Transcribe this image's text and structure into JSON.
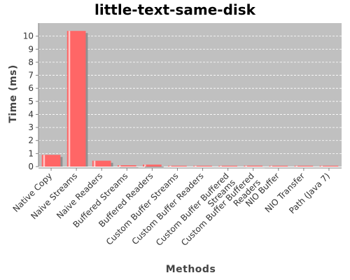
{
  "colors": {
    "plot_background": "#c0c0c0",
    "gridline": "#ffffff",
    "bar_fill": "#ff6666",
    "bar_highlight": "#ffd6d6",
    "bar_shadow": "#909090"
  },
  "chart_data": {
    "type": "bar",
    "title": "little-text-same-disk",
    "xlabel": "Methods",
    "ylabel": "Time (ms)",
    "ylim": [
      0,
      11
    ],
    "yticks": [
      0,
      1,
      2,
      3,
      4,
      5,
      6,
      7,
      8,
      9,
      10
    ],
    "grid": true,
    "categories": [
      [
        "Native Copy"
      ],
      [
        "Naive Streams"
      ],
      [
        "Naive Readers"
      ],
      [
        "Buffered Streams"
      ],
      [
        "Buffered Readers"
      ],
      [
        "Custom Buffer Streams"
      ],
      [
        "Custom Buffer Readers"
      ],
      [
        "Custom Buffer Buffered",
        "Streams"
      ],
      [
        "Custom Buffer Buffered",
        "Readers"
      ],
      [
        "NIO Buffer"
      ],
      [
        "NIO Transfer"
      ],
      [
        "Path (Java 7)"
      ]
    ],
    "values": [
      0.9,
      10.4,
      0.45,
      0.1,
      0.15,
      0.03,
      0.05,
      0.03,
      0.07,
      0.03,
      0.04,
      0.03
    ]
  }
}
